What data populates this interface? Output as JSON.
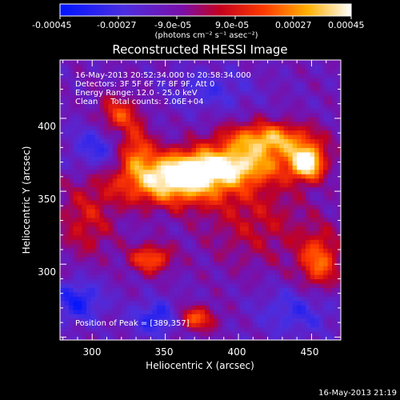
{
  "colorbar": {
    "tick_labels": [
      "-0.00045",
      "-0.00027",
      "-9.0e-05",
      "9.0e-05",
      "0.00027",
      "0.00045"
    ],
    "unit_label": "(photons cm⁻² s⁻¹ asec⁻²)",
    "range": [
      -0.00045,
      0.00045
    ]
  },
  "chart_data": {
    "type": "heatmap",
    "title": "Reconstructed RHESSI Image",
    "xlabel": "Heliocentric X (arcsec)",
    "ylabel": "Heliocentric Y (arcsec)",
    "xlim": [
      278,
      470
    ],
    "ylim": [
      248,
      440
    ],
    "x_ticks": [
      "300",
      "350",
      "400",
      "450"
    ],
    "y_ticks": [
      "300",
      "350",
      "400"
    ],
    "colormap": "blue-purple-red-yellow-white",
    "annotations": [
      "16-May-2013 20:52:34.000 to 20:58:34.000",
      "Detectors: 3F 5F 6F 7F 8F 9F, Att 0",
      "Energy Range: 12.0 - 25.0 keV",
      "Clean     Total counts: 2.06E+04"
    ],
    "peak_label": "Position of Peak = [389,357]",
    "peak": [
      389,
      357
    ],
    "sources": [
      {
        "x": 355,
        "y": 356,
        "sx": 28,
        "sy": 11,
        "amp": 0.9
      },
      {
        "x": 388,
        "y": 368,
        "sx": 32,
        "sy": 9,
        "amp": 0.85
      },
      {
        "x": 420,
        "y": 386,
        "sx": 22,
        "sy": 8,
        "amp": 0.8
      },
      {
        "x": 447,
        "y": 370,
        "sx": 8,
        "sy": 8,
        "amp": 1.0
      },
      {
        "x": 330,
        "y": 380,
        "sx": 8,
        "sy": 10,
        "amp": 0.5
      },
      {
        "x": 318,
        "y": 402,
        "sx": 10,
        "sy": 9,
        "amp": 0.55
      },
      {
        "x": 340,
        "y": 304,
        "sx": 10,
        "sy": 7,
        "amp": 0.6
      },
      {
        "x": 455,
        "y": 302,
        "sx": 10,
        "sy": 14,
        "amp": 0.6
      },
      {
        "x": 370,
        "y": 263,
        "sx": 10,
        "sy": 6,
        "amp": 0.6
      },
      {
        "x": 412,
        "y": 330,
        "sx": 26,
        "sy": 22,
        "amp": 0.3
      },
      {
        "x": 296,
        "y": 330,
        "sx": 14,
        "sy": 18,
        "amp": 0.35
      },
      {
        "x": 290,
        "y": 275,
        "sx": 12,
        "sy": 10,
        "amp": -0.45
      },
      {
        "x": 345,
        "y": 263,
        "sx": 12,
        "sy": 8,
        "amp": -0.45
      },
      {
        "x": 303,
        "y": 380,
        "sx": 12,
        "sy": 12,
        "amp": -0.35
      },
      {
        "x": 380,
        "y": 420,
        "sx": 20,
        "sy": 10,
        "amp": -0.25
      },
      {
        "x": 440,
        "y": 268,
        "sx": 18,
        "sy": 12,
        "amp": -0.3
      }
    ]
  },
  "footer": {
    "timestamp": "16-May-2013 21:19"
  }
}
